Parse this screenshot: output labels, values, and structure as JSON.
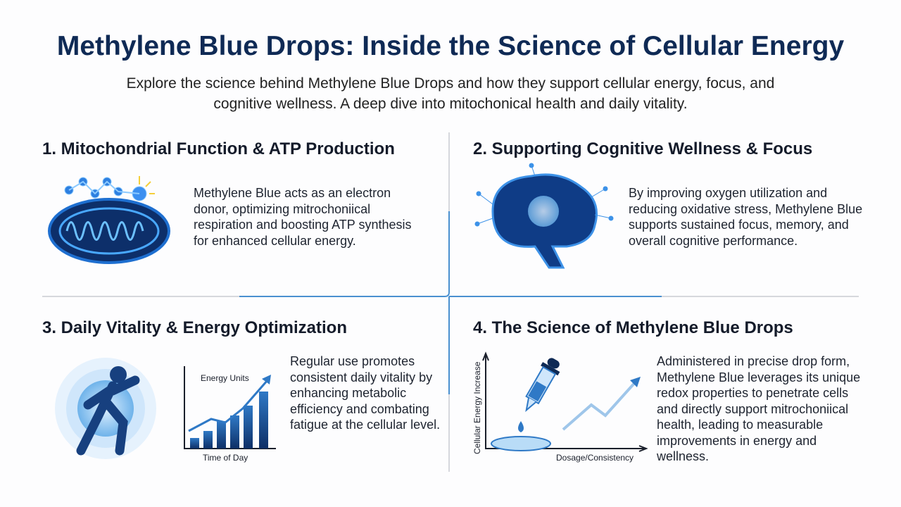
{
  "header": {
    "title": "Methylene Blue Drops: Inside the Science of Cellular Energy",
    "subtitle": "Explore the science behind Methylene Blue Drops and how they support cellular energy, focus, and cognitive wellness. A deep dive into mitochonical health and daily vitality."
  },
  "sections": [
    {
      "heading": "1. Mitochondrial Function & ATP Production",
      "body": "Methylene Blue acts as an electron donor, optimizing mitrochoniical respiration and boosting ATP synthesis for enhanced cellular energy."
    },
    {
      "heading": "2. Supporting Cognitive Wellness & Focus",
      "body": "By improving oxygen utilization and reducing oxidative stress, Methylene Blue supports sustained focus, memory, and overall cognitive performance."
    },
    {
      "heading": "3. Daily Vitality & Energy Optimization",
      "body": "Regular use promotes consistent daily vitality by enhancing metabolic efficiency and combating fatigue at the cellular level.",
      "chart": {
        "y_label": "Energy Units",
        "x_label": "Time of Day"
      }
    },
    {
      "heading": "4. The Science of Methylene Blue Drops",
      "body": "Administered in precise drop form, Methylene Blue leverages its unique redox properties to penetrate cells and directly support mitrochoniical health, leading to measurable improvements in energy and wellness.",
      "chart": {
        "y_label": "Cellular Energy Increase",
        "x_label": "Dosage/Consistency"
      }
    }
  ]
}
